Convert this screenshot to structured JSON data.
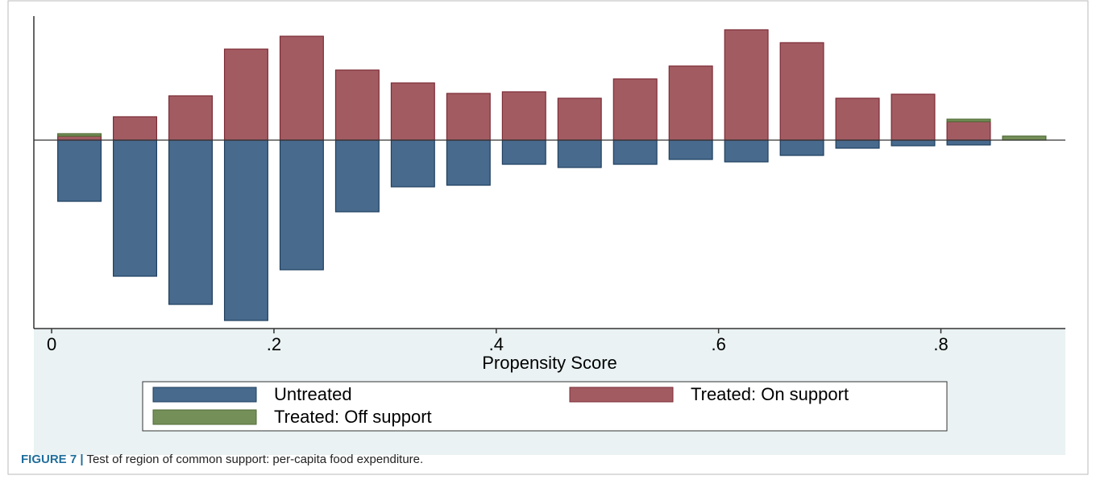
{
  "chart_data": {
    "type": "mirrored-histogram",
    "x_label": "Propensity Score",
    "bins": [
      0,
      0.05,
      0.1,
      0.15,
      0.2,
      0.25,
      0.3,
      0.35,
      0.4,
      0.45,
      0.5,
      0.55,
      0.6,
      0.65,
      0.7,
      0.75,
      0.8,
      0.85,
      0.9
    ],
    "series": [
      {
        "name": "Untreated",
        "color": "#476a8d",
        "values": [
          -7.6,
          -16.9,
          -20.4,
          -22.4,
          -16.1,
          -8.9,
          -5.8,
          -5.6,
          -3.0,
          -3.4,
          -3.0,
          -2.4,
          -2.7,
          -1.9,
          -1.0,
          -0.7,
          -0.6,
          0
        ]
      },
      {
        "name": "Treated: On support",
        "color": "#a35b62",
        "values": [
          0.5,
          2.9,
          5.5,
          11.3,
          12.9,
          8.7,
          7.1,
          5.8,
          6.0,
          5.2,
          7.6,
          9.2,
          13.7,
          12.1,
          5.2,
          5.7,
          2.3,
          0
        ]
      },
      {
        "name": "Treated: Off support",
        "color": "#748f58",
        "values": [
          0.3,
          0,
          0,
          0,
          0,
          0,
          0,
          0,
          0,
          0,
          0,
          0,
          0,
          0,
          0,
          0,
          0.3,
          0.5
        ]
      }
    ],
    "xlim": [
      -0.016,
      0.912
    ],
    "xticks": [
      0,
      {
        "value": 0.2,
        "label": ".2"
      },
      {
        "value": 0.4,
        "label": ".4"
      },
      {
        "value": 0.6,
        "label": ".6"
      },
      {
        "value": 0.8,
        "label": ".8"
      }
    ],
    "ylim": [
      -23.4,
      15.4
    ],
    "legend": "bottom"
  },
  "caption": {
    "label": "FIGURE 7 |",
    "text": "Test of region of common support: per-capita food expenditure."
  }
}
